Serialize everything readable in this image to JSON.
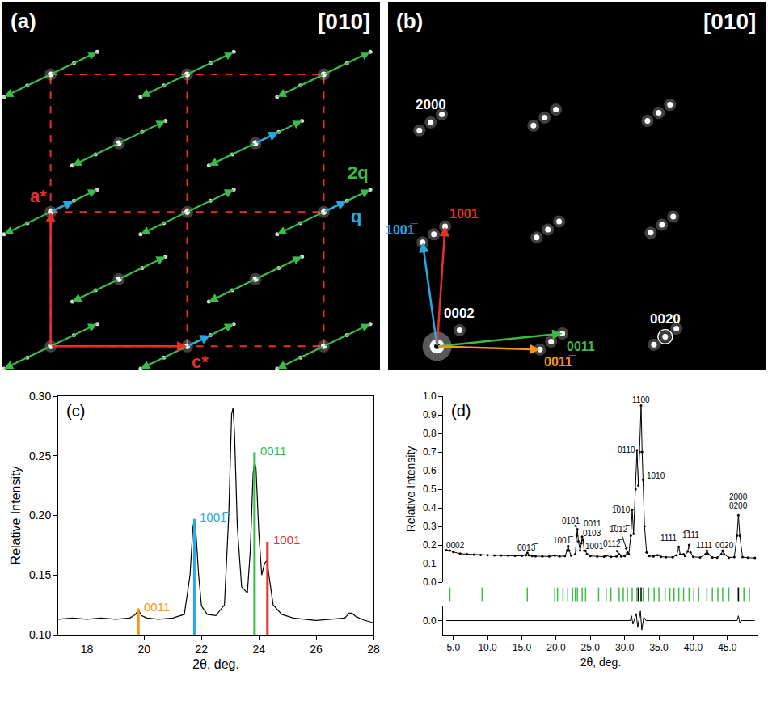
{
  "chart_data": [
    {
      "type": "scatter",
      "panel": "(a)",
      "title": "[010]",
      "tick_labels": false,
      "xlim": [
        0,
        470
      ],
      "ylim": [
        0,
        460
      ],
      "spots": {
        "color": "#ffffff",
        "x": [
          60,
          230,
          400,
          60,
          230,
          400,
          60,
          230,
          400,
          145,
          315,
          145,
          315
        ],
        "y": [
          30,
          30,
          30,
          198,
          198,
          198,
          370,
          370,
          370,
          114,
          114,
          284,
          284
        ]
      },
      "satellites": {
        "label": "2q",
        "color": "#3dbb4a",
        "groups": [
          {
            "x": [
              2,
              31,
              89,
              118
            ],
            "y": [
              2,
              16,
              44,
              58
            ]
          },
          {
            "x": [
              172,
              201,
              259,
              288
            ],
            "y": [
              2,
              16,
              44,
              58
            ]
          },
          {
            "x": [
              342,
              371,
              429,
              458
            ],
            "y": [
              2,
              16,
              44,
              58
            ]
          },
          {
            "x": [
              2,
              31,
              89,
              118
            ],
            "y": [
              170,
              184,
              212,
              226
            ]
          },
          {
            "x": [
              172,
              201,
              259,
              288
            ],
            "y": [
              170,
              184,
              212,
              226
            ]
          },
          {
            "x": [
              342,
              371,
              429,
              458
            ],
            "y": [
              170,
              184,
              212,
              226
            ]
          },
          {
            "x": [
              2,
              31,
              89,
              118
            ],
            "y": [
              342,
              356,
              384,
              398
            ]
          },
          {
            "x": [
              172,
              201,
              259,
              288
            ],
            "y": [
              342,
              356,
              384,
              398
            ]
          },
          {
            "x": [
              342,
              371,
              429,
              458
            ],
            "y": [
              342,
              356,
              384,
              398
            ]
          },
          {
            "x": [
              87,
              116,
              174,
              203
            ],
            "y": [
              86,
              100,
              128,
              142
            ]
          },
          {
            "x": [
              257,
              286,
              344,
              373
            ],
            "y": [
              86,
              100,
              128,
              142
            ]
          },
          {
            "x": [
              87,
              116,
              174,
              203
            ],
            "y": [
              256,
              270,
              298,
              312
            ]
          },
          {
            "x": [
              257,
              286,
              344,
              373
            ],
            "y": [
              256,
              270,
              298,
              312
            ]
          }
        ]
      },
      "cell": {
        "color": "#e8302a",
        "line_style": "dash",
        "x": [
          60,
          230,
          400
        ],
        "y": [
          30,
          198,
          370
        ]
      },
      "vectors": [
        {
          "label": "a*",
          "color": "#e8302a",
          "from": [
            60,
            30
          ],
          "to": [
            60,
            198
          ]
        },
        {
          "label": "c*",
          "color": "#e8302a",
          "from": [
            60,
            30
          ],
          "to": [
            230,
            30
          ]
        },
        {
          "label": "q",
          "color": "#29a9e1",
          "from": [
            400,
            198
          ],
          "to": [
            429,
            212
          ]
        },
        {
          "color": "#29a9e1",
          "from": [
            60,
            198
          ],
          "to": [
            89,
            212
          ]
        },
        {
          "color": "#29a9e1",
          "from": [
            230,
            30
          ],
          "to": [
            259,
            44
          ]
        },
        {
          "color": "#29a9e1",
          "from": [
            315,
            284
          ],
          "to": [
            344,
            298
          ]
        }
      ]
    },
    {
      "type": "scatter",
      "panel": "(b)",
      "title": "[010]",
      "tick_labels": false,
      "xlim": [
        0,
        470
      ],
      "ylim": [
        0,
        460
      ],
      "origin": [
        61,
        30
      ],
      "spots": {
        "color": "#ffffff",
        "x": [
          89,
          203,
          217,
          189,
          345,
          359,
          331,
          57,
          71,
          43,
          199,
          213,
          185,
          341,
          355,
          327,
          53,
          67,
          39,
          195,
          209,
          181,
          337,
          351,
          323
        ],
        "y": [
          50,
          36,
          46,
          26,
          42,
          52,
          32,
          170,
          180,
          160,
          176,
          186,
          166,
          182,
          192,
          172,
          310,
          320,
          300,
          316,
          326,
          306,
          322,
          332,
          312
        ]
      },
      "vectors": [
        {
          "label": "1001",
          "color": "#e8302a",
          "from": [
            61,
            30
          ],
          "to": [
            71,
            180
          ]
        },
        {
          "label": "1001̅",
          "color": "#29a9e1",
          "from": [
            61,
            30
          ],
          "to": [
            43,
            160
          ]
        },
        {
          "label": "0011",
          "color": "#3dbb4a",
          "from": [
            61,
            30
          ],
          "to": [
            217,
            46
          ]
        },
        {
          "label": "0011̅",
          "color": "#f7941d",
          "from": [
            61,
            30
          ],
          "to": [
            189,
            26
          ]
        }
      ],
      "spot_labels": [
        {
          "text": "2000",
          "x": 53,
          "y": 310
        },
        {
          "text": "0002",
          "x": 89,
          "y": 50
        },
        {
          "text": "0020",
          "x": 345,
          "y": 42,
          "marker": "ring"
        }
      ]
    },
    {
      "type": "line",
      "panel": "(c)",
      "color": "#000000",
      "xlabel": "2θ, deg.",
      "ylabel": "Relative Intensity",
      "xlim": [
        17,
        28
      ],
      "ylim": [
        0.1,
        0.3
      ],
      "xticks": [
        18,
        20,
        22,
        24,
        26,
        28
      ],
      "yticks": [
        {
          "value": 0.1,
          "label": "0.10"
        },
        0.15,
        {
          "value": 0.2,
          "label": "0.20"
        },
        0.25,
        {
          "value": 0.3,
          "label": "0.30"
        }
      ],
      "x": [
        17.0,
        17.5,
        18.0,
        18.5,
        19.0,
        19.5,
        19.7,
        19.8,
        19.9,
        20.1,
        20.5,
        21.0,
        21.4,
        21.6,
        21.7,
        21.75,
        21.8,
        21.9,
        22.0,
        22.2,
        22.5,
        22.8,
        22.95,
        23.05,
        23.1,
        23.15,
        23.25,
        23.4,
        23.6,
        23.7,
        23.8,
        23.85,
        23.9,
        24.0,
        24.1,
        24.2,
        24.28,
        24.35,
        24.5,
        24.8,
        25.2,
        25.6,
        26.0,
        26.5,
        27.0,
        27.15,
        27.25,
        27.4,
        27.7,
        28.0
      ],
      "values": [
        0.113,
        0.114,
        0.113,
        0.114,
        0.113,
        0.114,
        0.117,
        0.121,
        0.116,
        0.114,
        0.113,
        0.114,
        0.117,
        0.15,
        0.19,
        0.197,
        0.188,
        0.15,
        0.124,
        0.117,
        0.116,
        0.125,
        0.2,
        0.285,
        0.29,
        0.27,
        0.19,
        0.14,
        0.135,
        0.17,
        0.235,
        0.245,
        0.24,
        0.185,
        0.15,
        0.16,
        0.162,
        0.15,
        0.125,
        0.117,
        0.114,
        0.113,
        0.112,
        0.113,
        0.114,
        0.118,
        0.118,
        0.115,
        0.112,
        0.11
      ],
      "markers": [
        {
          "label": "0011̅",
          "color": "#f7941d",
          "x": 19.8,
          "y": 0.122
        },
        {
          "label": "1001̅",
          "color": "#29a9e1",
          "x": 21.75,
          "y": 0.197
        },
        {
          "label": "0011",
          "color": "#3dbb4a",
          "x": 23.85,
          "y": 0.253
        },
        {
          "label": "1001",
          "color": "#e8302a",
          "x": 24.3,
          "y": 0.178
        }
      ]
    },
    {
      "type": "line",
      "panel": "(d)",
      "color": "#000000",
      "marker": "dot",
      "xlabel": "2θ, deg.",
      "ylabel": "Relative Intensity",
      "xlim": [
        3.5,
        49.5
      ],
      "ylim": [
        0,
        1
      ],
      "xticks": [
        {
          "value": 5,
          "label": "5.0"
        },
        {
          "value": 10,
          "label": "10.0"
        },
        {
          "value": 15,
          "label": "15.0"
        },
        {
          "value": 20,
          "label": "20.0"
        },
        {
          "value": 25,
          "label": "25.0"
        },
        {
          "value": 30,
          "label": "30.0"
        },
        {
          "value": 35,
          "label": "35.0"
        },
        {
          "value": 40,
          "label": "40.0"
        },
        {
          "value": 45,
          "label": "45.0"
        }
      ],
      "yticks": [
        {
          "value": 0,
          "label": "0.0"
        },
        0.1,
        0.2,
        0.3,
        0.4,
        0.5,
        0.6,
        0.7,
        0.8,
        0.9,
        {
          "value": 1,
          "label": "1.0"
        }
      ],
      "y2lim": [
        -0.06,
        0.06
      ],
      "y2ticks": [
        {
          "value": 0,
          "label": "0.0"
        }
      ],
      "x": [
        4.0,
        4.5,
        5.0,
        6.0,
        7.0,
        8.0,
        9.0,
        10.0,
        11.0,
        12.0,
        13.0,
        14.0,
        15.0,
        15.6,
        15.8,
        16.0,
        16.5,
        17.0,
        18.0,
        19.0,
        19.8,
        20.5,
        21.3,
        21.6,
        21.75,
        21.9,
        22.2,
        22.8,
        23.0,
        23.1,
        23.25,
        23.5,
        23.7,
        23.8,
        23.95,
        24.1,
        24.3,
        24.5,
        25.0,
        26.0,
        27.0,
        27.3,
        28.0,
        28.8,
        29.2,
        29.5,
        30.0,
        30.4,
        30.6,
        30.9,
        31.1,
        31.3,
        31.6,
        31.8,
        32.0,
        32.2,
        32.4,
        32.55,
        32.7,
        32.9,
        33.2,
        33.6,
        34.2,
        34.8,
        35.3,
        36.0,
        37.0,
        37.6,
        37.9,
        38.1,
        38.6,
        38.8,
        39.2,
        39.4,
        39.6,
        40.0,
        41.0,
        41.8,
        42.0,
        42.2,
        42.8,
        43.5,
        44.1,
        44.3,
        44.5,
        45.2,
        46.0,
        46.4,
        46.6,
        46.8,
        47.2,
        48.0,
        49.0
      ],
      "values": [
        0.172,
        0.17,
        0.162,
        0.153,
        0.15,
        0.148,
        0.146,
        0.145,
        0.144,
        0.143,
        0.142,
        0.141,
        0.141,
        0.145,
        0.158,
        0.145,
        0.14,
        0.139,
        0.138,
        0.138,
        0.142,
        0.138,
        0.14,
        0.17,
        0.195,
        0.17,
        0.142,
        0.15,
        0.25,
        0.285,
        0.22,
        0.17,
        0.21,
        0.245,
        0.225,
        0.17,
        0.168,
        0.15,
        0.14,
        0.137,
        0.137,
        0.142,
        0.136,
        0.138,
        0.15,
        0.138,
        0.14,
        0.16,
        0.15,
        0.25,
        0.39,
        0.26,
        0.5,
        0.71,
        0.52,
        0.7,
        0.95,
        0.7,
        0.55,
        0.3,
        0.16,
        0.14,
        0.138,
        0.145,
        0.136,
        0.134,
        0.134,
        0.145,
        0.19,
        0.15,
        0.15,
        0.14,
        0.165,
        0.2,
        0.16,
        0.136,
        0.133,
        0.15,
        0.17,
        0.15,
        0.133,
        0.132,
        0.15,
        0.17,
        0.15,
        0.132,
        0.135,
        0.25,
        0.36,
        0.25,
        0.135,
        0.131,
        0.13
      ],
      "difference": {
        "axis": "y2",
        "color": "#000000",
        "x": [
          4.0,
          30.8,
          31.0,
          31.2,
          31.7,
          31.9,
          32.3,
          32.5,
          32.8,
          33.1,
          46.4,
          46.6,
          46.8,
          47.0,
          49.0
        ],
        "values": [
          0,
          0,
          0.02,
          -0.015,
          0.03,
          -0.03,
          0.04,
          -0.04,
          0.015,
          0,
          0,
          0.02,
          -0.01,
          0,
          0
        ]
      },
      "reflections": [
        {
          "color": "#3dbb4a",
          "x": [
            4.5,
            9.2,
            15.8,
            19.8,
            20.2,
            21.0,
            21.7,
            22.4,
            22.8,
            23.1,
            23.8,
            24.3,
            26.2,
            27.3,
            28.0,
            29.2,
            29.8,
            30.4,
            31.1,
            31.8,
            32.7,
            33.5,
            34.3,
            35.0,
            35.9,
            36.6,
            37.2,
            37.9,
            38.6,
            39.4,
            40.1,
            40.8,
            42.0,
            42.8,
            43.6,
            44.3,
            45.2,
            46.6,
            47.4,
            48.2
          ]
        },
        {
          "color": "#000000",
          "x": [
            32.0,
            32.4,
            46.6
          ]
        }
      ],
      "annotations": [
        {
          "text": "0002",
          "x": 5.3,
          "y": 0.2
        },
        {
          "text": "0013̅",
          "x": 15.8,
          "y": 0.185
        },
        {
          "text": "1001̅",
          "x": 21.0,
          "y": 0.225
        },
        {
          "text": "0101",
          "x": 22.2,
          "y": 0.33,
          "point": [
            23.1,
            0.29
          ]
        },
        {
          "text": "0011",
          "x": 25.3,
          "y": 0.315
        },
        {
          "text": "0103",
          "x": 25.3,
          "y": 0.262
        },
        {
          "text": "1001",
          "x": 25.6,
          "y": 0.195
        },
        {
          "text": "0112̅",
          "x": 28.3,
          "y": 0.205,
          "point": [
            29.2,
            0.15
          ]
        },
        {
          "text": "1̅012̅",
          "x": 29.3,
          "y": 0.285,
          "point": [
            30.4,
            0.165
          ]
        },
        {
          "text": "1̅010",
          "x": 29.5,
          "y": 0.39
        },
        {
          "text": "0110",
          "x": 30.3,
          "y": 0.71
        },
        {
          "text": "1100",
          "x": 32.4,
          "y": 0.98
        },
        {
          "text": "1010",
          "x": 34.6,
          "y": 0.57
        },
        {
          "text": "1111̅",
          "x": 36.6,
          "y": 0.235
        },
        {
          "text": "1̅111",
          "x": 39.6,
          "y": 0.255
        },
        {
          "text": "1111",
          "x": 41.6,
          "y": 0.2
        },
        {
          "text": "0020",
          "x": 44.6,
          "y": 0.2
        },
        {
          "text": "0200",
          "x": 46.6,
          "y": 0.41
        },
        {
          "text": "2000",
          "x": 46.6,
          "y": 0.46
        }
      ]
    }
  ]
}
